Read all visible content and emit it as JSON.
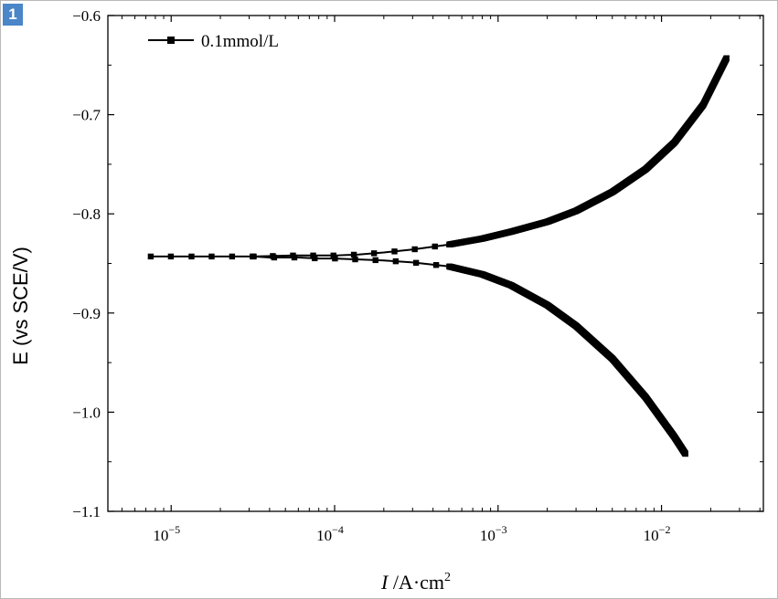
{
  "badge": "1",
  "chart_data": {
    "type": "line",
    "title": "",
    "xlabel_italic": "I",
    "xlabel_rest": " /A·cm",
    "xlabel_sup": "2",
    "ylabel": "E (vs SCE/V)",
    "xscale": "log",
    "xlim": [
      4.1e-06,
      0.042
    ],
    "ylim": [
      -1.1,
      -0.6
    ],
    "yticks": [
      -1.1,
      -1.0,
      -0.9,
      -0.8,
      -0.7,
      -0.6
    ],
    "ytick_labels": [
      "−1.1",
      "−1.0",
      "−0.9",
      "−0.8",
      "−0.7",
      "−0.6"
    ],
    "xtick_exponents": [
      "−5",
      "−4",
      "−3",
      "−2"
    ],
    "xtick_values": [
      1e-05,
      0.0001,
      0.001,
      0.01
    ],
    "legend": {
      "position": "top-left"
    },
    "grid": false,
    "series": [
      {
        "name": "0.1mmol/L",
        "color": "#000000",
        "marker": "square",
        "anodic_branch": {
          "x": [
            7.5e-06,
            1.7e-05,
            3.2e-05,
            5.6e-05,
            8e-05,
            0.0001,
            0.00014,
            0.0002,
            0.0003,
            0.0005,
            0.0008,
            0.0012,
            0.002,
            0.003,
            0.005,
            0.008,
            0.012,
            0.018,
            0.025
          ],
          "y": [
            -0.843,
            -0.843,
            -0.843,
            -0.842,
            -0.842,
            -0.842,
            -0.841,
            -0.839,
            -0.836,
            -0.831,
            -0.825,
            -0.818,
            -0.808,
            -0.797,
            -0.778,
            -0.755,
            -0.728,
            -0.69,
            -0.643
          ]
        },
        "cathodic_branch": {
          "x": [
            3.2e-05,
            4e-05,
            6e-05,
            8e-05,
            0.0001,
            0.00014,
            0.0002,
            0.0003,
            0.0005,
            0.0008,
            0.0012,
            0.002,
            0.003,
            0.005,
            0.008,
            0.012,
            0.014
          ],
          "y": [
            -0.843,
            -0.844,
            -0.844,
            -0.845,
            -0.845,
            -0.846,
            -0.847,
            -0.849,
            -0.853,
            -0.861,
            -0.872,
            -0.892,
            -0.913,
            -0.946,
            -0.985,
            -1.025,
            -1.042
          ]
        }
      }
    ]
  }
}
